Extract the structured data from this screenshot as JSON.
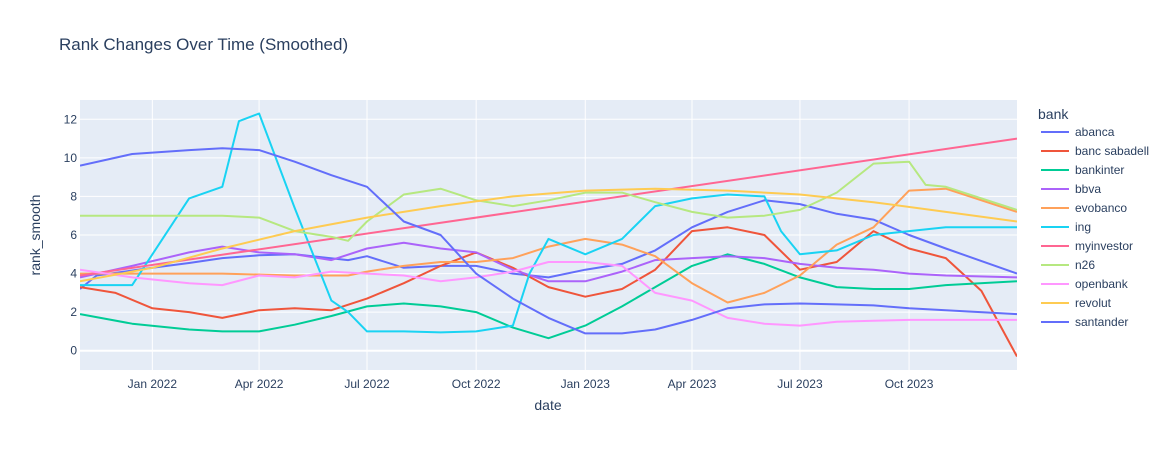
{
  "chart_data": {
    "type": "line",
    "title": "Rank Changes Over Time (Smoothed)",
    "xlabel": "date",
    "ylabel": "rank_smooth",
    "legend_title": "bank",
    "legend_position": "right",
    "grid": true,
    "background_color": "#E5ECF6",
    "grid_color": "#ffffff",
    "x_range": [
      "2021-11-01",
      "2023-12-31"
    ],
    "ylim": [
      -1,
      13
    ],
    "x_ticks": [
      {
        "date": "2022-01-01",
        "label": "Jan 2022"
      },
      {
        "date": "2022-04-01",
        "label": "Apr 2022"
      },
      {
        "date": "2022-07-01",
        "label": "Jul 2022"
      },
      {
        "date": "2022-10-01",
        "label": "Oct 2022"
      },
      {
        "date": "2023-01-01",
        "label": "Jan 2023"
      },
      {
        "date": "2023-04-01",
        "label": "Apr 2023"
      },
      {
        "date": "2023-07-01",
        "label": "Jul 2023"
      },
      {
        "date": "2023-10-01",
        "label": "Oct 2023"
      }
    ],
    "y_ticks": [
      0,
      2,
      4,
      6,
      8,
      10,
      12
    ],
    "series": [
      {
        "name": "abanca",
        "color": "#636EFA",
        "points": [
          [
            "2021-11-01",
            3.2
          ],
          [
            "2021-11-15",
            3.9
          ],
          [
            "2022-01-01",
            4.3
          ],
          [
            "2022-02-01",
            4.55
          ],
          [
            "2022-03-01",
            4.8
          ],
          [
            "2022-04-01",
            4.95
          ],
          [
            "2022-05-01",
            5.0
          ],
          [
            "2022-06-15",
            4.7
          ],
          [
            "2022-07-01",
            4.9
          ],
          [
            "2022-08-01",
            4.3
          ],
          [
            "2022-09-01",
            4.4
          ],
          [
            "2022-10-01",
            4.4
          ],
          [
            "2022-11-01",
            4.0
          ],
          [
            "2022-12-01",
            3.8
          ],
          [
            "2023-01-01",
            4.2
          ],
          [
            "2023-02-01",
            4.5
          ],
          [
            "2023-03-01",
            5.2
          ],
          [
            "2023-04-01",
            6.4
          ],
          [
            "2023-05-01",
            7.2
          ],
          [
            "2023-06-01",
            7.8
          ],
          [
            "2023-07-01",
            7.6
          ],
          [
            "2023-08-01",
            7.1
          ],
          [
            "2023-09-01",
            6.8
          ],
          [
            "2023-10-01",
            6.0
          ],
          [
            "2023-11-01",
            5.3
          ],
          [
            "2023-12-31",
            4.0
          ]
        ]
      },
      {
        "name": "banc sabadell",
        "color": "#EF553B",
        "points": [
          [
            "2021-11-01",
            3.3
          ],
          [
            "2021-12-01",
            3.0
          ],
          [
            "2022-01-01",
            2.2
          ],
          [
            "2022-02-01",
            2.0
          ],
          [
            "2022-03-01",
            1.7
          ],
          [
            "2022-04-01",
            2.1
          ],
          [
            "2022-05-01",
            2.2
          ],
          [
            "2022-06-01",
            2.1
          ],
          [
            "2022-07-01",
            2.7
          ],
          [
            "2022-08-01",
            3.5
          ],
          [
            "2022-09-01",
            4.4
          ],
          [
            "2022-10-01",
            5.1
          ],
          [
            "2022-11-01",
            4.3
          ],
          [
            "2022-12-01",
            3.3
          ],
          [
            "2023-01-01",
            2.8
          ],
          [
            "2023-02-01",
            3.2
          ],
          [
            "2023-03-01",
            4.2
          ],
          [
            "2023-04-01",
            6.2
          ],
          [
            "2023-05-01",
            6.4
          ],
          [
            "2023-06-01",
            6.0
          ],
          [
            "2023-07-01",
            4.2
          ],
          [
            "2023-08-01",
            4.6
          ],
          [
            "2023-09-01",
            6.2
          ],
          [
            "2023-10-01",
            5.3
          ],
          [
            "2023-11-01",
            4.8
          ],
          [
            "2023-12-01",
            3.1
          ],
          [
            "2023-12-31",
            -0.3
          ]
        ]
      },
      {
        "name": "bankinter",
        "color": "#00CC96",
        "points": [
          [
            "2021-11-01",
            1.9
          ],
          [
            "2021-12-15",
            1.4
          ],
          [
            "2022-02-01",
            1.1
          ],
          [
            "2022-03-01",
            1.0
          ],
          [
            "2022-04-01",
            1.0
          ],
          [
            "2022-05-01",
            1.35
          ],
          [
            "2022-06-01",
            1.8
          ],
          [
            "2022-07-01",
            2.3
          ],
          [
            "2022-08-01",
            2.45
          ],
          [
            "2022-09-01",
            2.3
          ],
          [
            "2022-10-01",
            2.0
          ],
          [
            "2022-11-01",
            1.2
          ],
          [
            "2022-12-01",
            0.65
          ],
          [
            "2023-01-01",
            1.3
          ],
          [
            "2023-02-01",
            2.3
          ],
          [
            "2023-03-01",
            3.3
          ],
          [
            "2023-04-01",
            4.4
          ],
          [
            "2023-05-01",
            5.0
          ],
          [
            "2023-06-01",
            4.5
          ],
          [
            "2023-07-01",
            3.8
          ],
          [
            "2023-08-01",
            3.3
          ],
          [
            "2023-09-01",
            3.2
          ],
          [
            "2023-10-01",
            3.2
          ],
          [
            "2023-11-01",
            3.4
          ],
          [
            "2023-12-31",
            3.6
          ]
        ]
      },
      {
        "name": "bbva",
        "color": "#AB63FA",
        "points": [
          [
            "2021-11-01",
            3.8
          ],
          [
            "2021-12-15",
            4.4
          ],
          [
            "2022-02-01",
            5.1
          ],
          [
            "2022-03-01",
            5.4
          ],
          [
            "2022-04-01",
            5.1
          ],
          [
            "2022-05-01",
            5.0
          ],
          [
            "2022-06-01",
            4.7
          ],
          [
            "2022-07-01",
            5.3
          ],
          [
            "2022-08-01",
            5.6
          ],
          [
            "2022-09-01",
            5.3
          ],
          [
            "2022-10-01",
            5.1
          ],
          [
            "2022-11-01",
            4.2
          ],
          [
            "2022-12-01",
            3.6
          ],
          [
            "2023-01-01",
            3.6
          ],
          [
            "2023-02-01",
            4.1
          ],
          [
            "2023-03-01",
            4.7
          ],
          [
            "2023-04-01",
            4.8
          ],
          [
            "2023-05-01",
            4.9
          ],
          [
            "2023-06-01",
            4.8
          ],
          [
            "2023-07-01",
            4.5
          ],
          [
            "2023-08-01",
            4.3
          ],
          [
            "2023-09-01",
            4.2
          ],
          [
            "2023-10-01",
            4.0
          ],
          [
            "2023-11-01",
            3.9
          ],
          [
            "2023-12-31",
            3.8
          ]
        ]
      },
      {
        "name": "evobanco",
        "color": "#FFA15A",
        "points": [
          [
            "2021-11-01",
            4.0
          ],
          [
            "2022-01-01",
            4.0
          ],
          [
            "2022-03-01",
            4.0
          ],
          [
            "2022-05-01",
            3.9
          ],
          [
            "2022-06-15",
            3.9
          ],
          [
            "2022-07-01",
            4.1
          ],
          [
            "2022-08-01",
            4.4
          ],
          [
            "2022-09-01",
            4.6
          ],
          [
            "2022-10-01",
            4.6
          ],
          [
            "2022-11-01",
            4.8
          ],
          [
            "2022-12-01",
            5.4
          ],
          [
            "2023-01-01",
            5.8
          ],
          [
            "2023-02-01",
            5.5
          ],
          [
            "2023-03-01",
            4.9
          ],
          [
            "2023-04-01",
            3.5
          ],
          [
            "2023-05-01",
            2.5
          ],
          [
            "2023-06-01",
            3.0
          ],
          [
            "2023-07-01",
            3.9
          ],
          [
            "2023-08-01",
            5.5
          ],
          [
            "2023-09-01",
            6.4
          ],
          [
            "2023-10-01",
            8.3
          ],
          [
            "2023-11-01",
            8.4
          ],
          [
            "2023-12-31",
            7.2
          ]
        ]
      },
      {
        "name": "ing",
        "color": "#19D3F3",
        "points": [
          [
            "2021-11-01",
            3.4
          ],
          [
            "2021-12-15",
            3.4
          ],
          [
            "2022-02-01",
            7.9
          ],
          [
            "2022-03-01",
            8.5
          ],
          [
            "2022-03-15",
            11.9
          ],
          [
            "2022-04-01",
            12.3
          ],
          [
            "2022-05-01",
            7.4
          ],
          [
            "2022-06-01",
            2.6
          ],
          [
            "2022-06-15",
            2.0
          ],
          [
            "2022-07-01",
            1.0
          ],
          [
            "2022-08-01",
            1.0
          ],
          [
            "2022-09-01",
            0.95
          ],
          [
            "2022-10-01",
            1.0
          ],
          [
            "2022-11-01",
            1.3
          ],
          [
            "2022-11-15",
            4.0
          ],
          [
            "2022-12-01",
            5.8
          ],
          [
            "2023-01-01",
            5.0
          ],
          [
            "2023-02-01",
            5.8
          ],
          [
            "2023-03-01",
            7.5
          ],
          [
            "2023-04-01",
            7.9
          ],
          [
            "2023-05-01",
            8.1
          ],
          [
            "2023-06-01",
            8.0
          ],
          [
            "2023-06-15",
            6.2
          ],
          [
            "2023-07-01",
            5.0
          ],
          [
            "2023-08-01",
            5.2
          ],
          [
            "2023-09-01",
            6.0
          ],
          [
            "2023-10-01",
            6.2
          ],
          [
            "2023-11-01",
            6.4
          ],
          [
            "2023-12-31",
            6.4
          ]
        ]
      },
      {
        "name": "myinvestor",
        "color": "#FF6692",
        "points": [
          [
            "2021-11-01",
            3.9
          ],
          [
            "2023-12-31",
            11.0
          ]
        ]
      },
      {
        "name": "n26",
        "color": "#B6E880",
        "points": [
          [
            "2021-11-01",
            7.0
          ],
          [
            "2022-01-01",
            7.0
          ],
          [
            "2022-03-01",
            7.0
          ],
          [
            "2022-04-01",
            6.9
          ],
          [
            "2022-05-01",
            6.2
          ],
          [
            "2022-06-01",
            5.9
          ],
          [
            "2022-06-15",
            5.7
          ],
          [
            "2022-07-01",
            6.7
          ],
          [
            "2022-08-01",
            8.1
          ],
          [
            "2022-09-01",
            8.4
          ],
          [
            "2022-10-01",
            7.8
          ],
          [
            "2022-11-01",
            7.5
          ],
          [
            "2022-12-01",
            7.8
          ],
          [
            "2023-01-01",
            8.2
          ],
          [
            "2023-02-01",
            8.2
          ],
          [
            "2023-03-01",
            7.7
          ],
          [
            "2023-04-01",
            7.2
          ],
          [
            "2023-05-01",
            6.9
          ],
          [
            "2023-06-01",
            7.0
          ],
          [
            "2023-07-01",
            7.3
          ],
          [
            "2023-08-01",
            8.2
          ],
          [
            "2023-09-01",
            9.7
          ],
          [
            "2023-10-01",
            9.8
          ],
          [
            "2023-10-15",
            8.6
          ],
          [
            "2023-11-01",
            8.5
          ],
          [
            "2023-12-31",
            7.3
          ]
        ]
      },
      {
        "name": "openbank",
        "color": "#FF97FF",
        "points": [
          [
            "2021-11-01",
            4.2
          ],
          [
            "2021-12-15",
            3.8
          ],
          [
            "2022-02-01",
            3.5
          ],
          [
            "2022-03-01",
            3.4
          ],
          [
            "2022-04-01",
            3.9
          ],
          [
            "2022-05-01",
            3.8
          ],
          [
            "2022-06-01",
            4.1
          ],
          [
            "2022-07-01",
            4.0
          ],
          [
            "2022-08-01",
            3.9
          ],
          [
            "2022-09-01",
            3.6
          ],
          [
            "2022-10-01",
            3.8
          ],
          [
            "2022-11-01",
            4.1
          ],
          [
            "2022-12-01",
            4.6
          ],
          [
            "2023-01-01",
            4.6
          ],
          [
            "2023-02-01",
            4.4
          ],
          [
            "2023-03-01",
            3.0
          ],
          [
            "2023-04-01",
            2.6
          ],
          [
            "2023-05-01",
            1.7
          ],
          [
            "2023-06-01",
            1.4
          ],
          [
            "2023-07-01",
            1.3
          ],
          [
            "2023-08-01",
            1.5
          ],
          [
            "2023-09-01",
            1.55
          ],
          [
            "2023-10-01",
            1.6
          ],
          [
            "2023-11-01",
            1.6
          ],
          [
            "2023-12-31",
            1.6
          ]
        ]
      },
      {
        "name": "revolut",
        "color": "#FECB52",
        "points": [
          [
            "2021-11-01",
            3.6
          ],
          [
            "2022-01-01",
            4.3
          ],
          [
            "2022-03-01",
            5.3
          ],
          [
            "2022-05-01",
            6.2
          ],
          [
            "2022-07-01",
            6.9
          ],
          [
            "2022-09-01",
            7.5
          ],
          [
            "2022-11-01",
            8.0
          ],
          [
            "2023-01-01",
            8.3
          ],
          [
            "2023-03-01",
            8.4
          ],
          [
            "2023-05-01",
            8.3
          ],
          [
            "2023-07-01",
            8.1
          ],
          [
            "2023-09-01",
            7.7
          ],
          [
            "2023-11-01",
            7.2
          ],
          [
            "2023-12-31",
            6.7
          ]
        ]
      },
      {
        "name": "santander",
        "color": "#636EFA",
        "points": [
          [
            "2021-11-01",
            9.6
          ],
          [
            "2021-12-15",
            10.2
          ],
          [
            "2022-02-01",
            10.4
          ],
          [
            "2022-03-01",
            10.5
          ],
          [
            "2022-04-01",
            10.4
          ],
          [
            "2022-05-01",
            9.8
          ],
          [
            "2022-06-01",
            9.1
          ],
          [
            "2022-07-01",
            8.5
          ],
          [
            "2022-08-01",
            6.7
          ],
          [
            "2022-09-01",
            6.0
          ],
          [
            "2022-10-01",
            4.0
          ],
          [
            "2022-11-01",
            2.7
          ],
          [
            "2022-12-01",
            1.7
          ],
          [
            "2023-01-01",
            0.9
          ],
          [
            "2023-02-01",
            0.9
          ],
          [
            "2023-03-01",
            1.1
          ],
          [
            "2023-04-01",
            1.6
          ],
          [
            "2023-05-01",
            2.2
          ],
          [
            "2023-06-01",
            2.4
          ],
          [
            "2023-07-01",
            2.45
          ],
          [
            "2023-08-01",
            2.4
          ],
          [
            "2023-09-01",
            2.35
          ],
          [
            "2023-10-01",
            2.2
          ],
          [
            "2023-11-01",
            2.1
          ],
          [
            "2023-12-31",
            1.9
          ]
        ]
      }
    ]
  }
}
